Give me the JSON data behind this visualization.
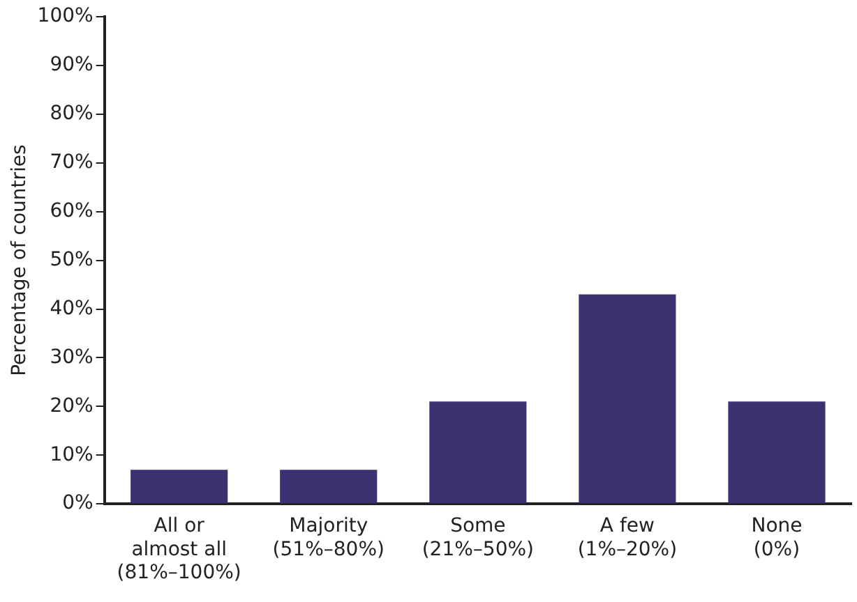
{
  "chart_data": {
    "type": "bar",
    "ylabel": "Percentage of countries",
    "categories": [
      "All or\nalmost all\n(81%–100%)",
      "Majority\n(51%–80%)",
      "Some\n(21%–50%)",
      "A few\n(1%–20%)",
      "None\n(0%)"
    ],
    "values": [
      7,
      7,
      21,
      43,
      21
    ],
    "color": "#3b3272",
    "ylim": [
      0,
      100
    ],
    "yticks": [
      {
        "value": 0,
        "label": "0%"
      },
      {
        "value": 10,
        "label": "10%"
      },
      {
        "value": 20,
        "label": "20%"
      },
      {
        "value": 30,
        "label": "30%"
      },
      {
        "value": 40,
        "label": "40%"
      },
      {
        "value": 50,
        "label": "50%"
      },
      {
        "value": 60,
        "label": "60%"
      },
      {
        "value": 70,
        "label": "70%"
      },
      {
        "value": 80,
        "label": "80%"
      },
      {
        "value": 90,
        "label": "90%"
      },
      {
        "value": 100,
        "label": "100%"
      }
    ],
    "grid": false,
    "legend": false
  }
}
